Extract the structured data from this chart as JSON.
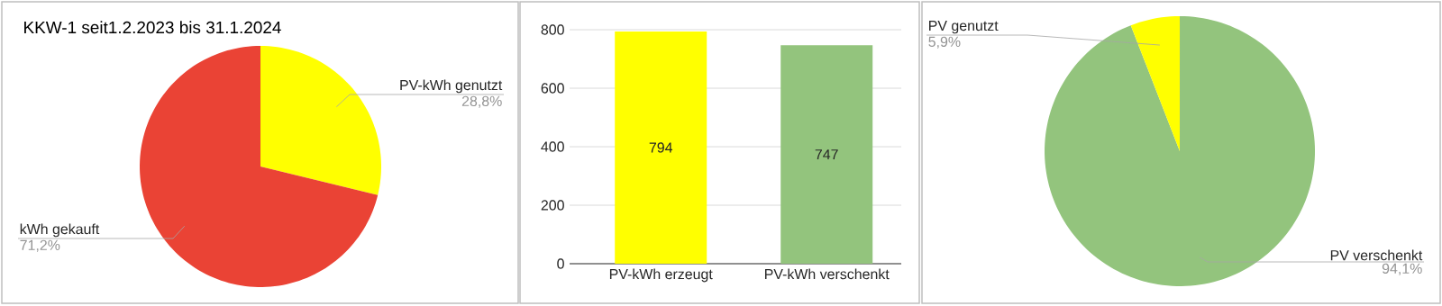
{
  "chart_data": [
    {
      "type": "pie",
      "title": "KKW-1 seit1.2.2023 bis 31.1.2024",
      "categories": [
        "PV-kWh genutzt",
        "kWh gekauft"
      ],
      "values": [
        28.8,
        71.2
      ],
      "colors": [
        "#ffff00",
        "#ea4335"
      ],
      "value_labels": [
        "28,8%",
        "71,2%"
      ]
    },
    {
      "type": "bar",
      "categories": [
        "PV-kWh erzeugt",
        "PV-kWh verschenkt"
      ],
      "values": [
        794,
        747
      ],
      "colors": [
        "#ffff00",
        "#93c47d"
      ],
      "ylim": [
        0,
        800
      ],
      "yticks": [
        0,
        200,
        400,
        600,
        800
      ],
      "grid": "y",
      "data_labels": true
    },
    {
      "type": "pie",
      "categories": [
        "PV verschenkt",
        "PV genutzt"
      ],
      "values": [
        94.1,
        5.9
      ],
      "colors": [
        "#93c47d",
        "#ffff00"
      ],
      "value_labels": [
        "94,1%",
        "5,9%"
      ]
    }
  ]
}
